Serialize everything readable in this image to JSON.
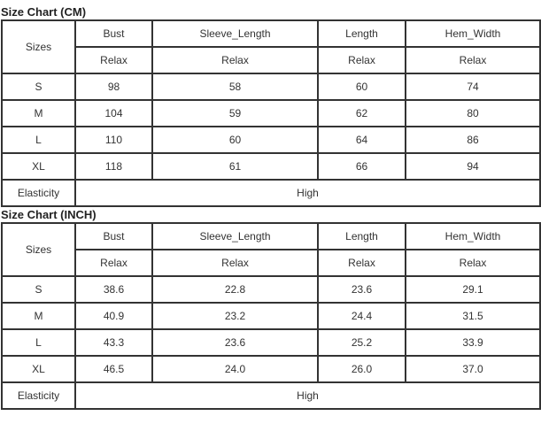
{
  "charts": [
    {
      "title": "Size Chart (CM)",
      "headers": [
        "Sizes",
        "Bust",
        "Sleeve_Length",
        "Length",
        "Hem_Width"
      ],
      "subheaders": [
        "Relax",
        "Relax",
        "Relax",
        "Relax"
      ],
      "rows": [
        [
          "S",
          "98",
          "58",
          "60",
          "74"
        ],
        [
          "M",
          "104",
          "59",
          "62",
          "80"
        ],
        [
          "L",
          "110",
          "60",
          "64",
          "86"
        ],
        [
          "XL",
          "118",
          "61",
          "66",
          "94"
        ]
      ],
      "elasticity_label": "Elasticity",
      "elasticity_value": "High"
    },
    {
      "title": "Size Chart (INCH)",
      "headers": [
        "Sizes",
        "Bust",
        "Sleeve_Length",
        "Length",
        "Hem_Width"
      ],
      "subheaders": [
        "Relax",
        "Relax",
        "Relax",
        "Relax"
      ],
      "rows": [
        [
          "S",
          "38.6",
          "22.8",
          "23.6",
          "29.1"
        ],
        [
          "M",
          "40.9",
          "23.2",
          "24.4",
          "31.5"
        ],
        [
          "L",
          "43.3",
          "23.6",
          "25.2",
          "33.9"
        ],
        [
          "XL",
          "46.5",
          "24.0",
          "26.0",
          "37.0"
        ]
      ],
      "elasticity_label": "Elasticity",
      "elasticity_value": "High"
    }
  ]
}
